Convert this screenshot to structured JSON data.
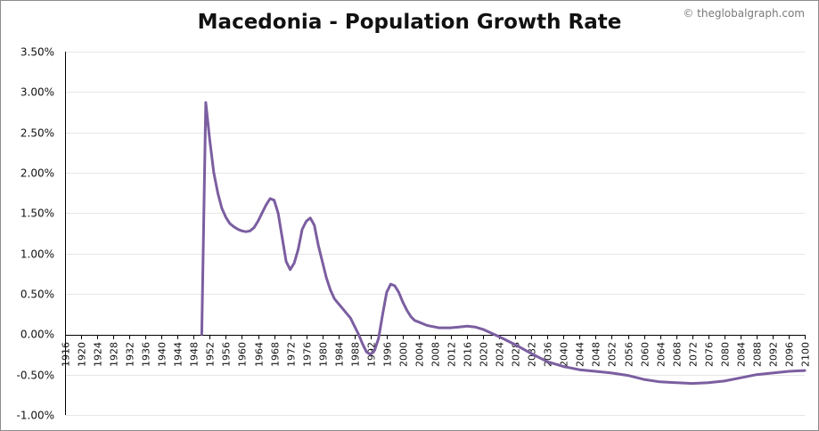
{
  "chart_data": {
    "type": "line",
    "title": "Macedonia - Population Growth Rate",
    "credit": "© theglobalgraph.com",
    "xlim": [
      1916,
      2100
    ],
    "ylim": [
      -1.0,
      3.5
    ],
    "ytick_values": [
      3.5,
      3.0,
      2.5,
      2.0,
      1.5,
      1.0,
      0.5,
      0.0,
      -0.5,
      -1.0
    ],
    "ytick_labels": [
      "3.50%",
      "3.00%",
      "2.50%",
      "2.00%",
      "1.50%",
      "1.00%",
      "0.50%",
      "0.00%",
      "-0.50%",
      "-1.00%"
    ],
    "xtick_values": [
      1916,
      1920,
      1924,
      1928,
      1932,
      1936,
      1940,
      1944,
      1948,
      1952,
      1956,
      1960,
      1964,
      1968,
      1972,
      1976,
      1980,
      1984,
      1988,
      1992,
      1996,
      2000,
      2004,
      2008,
      2012,
      2016,
      2020,
      2024,
      2028,
      2032,
      2036,
      2040,
      2044,
      2048,
      2052,
      2056,
      2060,
      2064,
      2068,
      2072,
      2076,
      2080,
      2084,
      2088,
      2092,
      2096,
      2100
    ],
    "xtick_labels": [
      "1916",
      "1920",
      "1924",
      "1928",
      "1932",
      "1936",
      "1940",
      "1944",
      "1948",
      "1952",
      "1956",
      "1960",
      "1964",
      "1968",
      "1972",
      "1976",
      "1980",
      "1984",
      "1988",
      "1992",
      "1996",
      "2000",
      "2004",
      "2008",
      "2012",
      "2016",
      "2020",
      "2024",
      "2028",
      "2032",
      "2036",
      "2040",
      "2044",
      "2048",
      "2052",
      "2056",
      "2060",
      "2064",
      "2068",
      "2072",
      "2076",
      "2080",
      "2084",
      "2088",
      "2092",
      "2096",
      "2100"
    ],
    "grid": true,
    "colors": {
      "line": "#7b5ea0",
      "grid": "#e6e6e6",
      "axis": "#000000"
    },
    "series": [
      {
        "x": [
          1950,
          1951,
          1952,
          1953,
          1954,
          1955,
          1956,
          1957,
          1958,
          1959,
          1960,
          1961,
          1962,
          1963,
          1964,
          1965,
          1966,
          1967,
          1968,
          1969,
          1970,
          1971,
          1972,
          1973,
          1974,
          1975,
          1976,
          1977,
          1978,
          1979,
          1980,
          1981,
          1982,
          1983,
          1984,
          1985,
          1986,
          1987,
          1988,
          1989,
          1990,
          1991,
          1992,
          1993,
          1994,
          1995,
          1996,
          1997,
          1998,
          1999,
          2000,
          2001,
          2002,
          2003,
          2004,
          2005,
          2006,
          2007,
          2008,
          2009,
          2010,
          2012,
          2014,
          2016,
          2018,
          2020,
          2024,
          2028,
          2032,
          2036,
          2040,
          2044,
          2048,
          2052,
          2056,
          2060,
          2064,
          2068,
          2072,
          2076,
          2080,
          2084,
          2088,
          2092,
          2096,
          2100
        ],
        "values": [
          0.0,
          2.87,
          2.4,
          2.0,
          1.75,
          1.56,
          1.45,
          1.37,
          1.33,
          1.3,
          1.28,
          1.27,
          1.28,
          1.32,
          1.4,
          1.5,
          1.6,
          1.68,
          1.66,
          1.5,
          1.2,
          0.9,
          0.8,
          0.88,
          1.05,
          1.3,
          1.4,
          1.44,
          1.35,
          1.1,
          0.9,
          0.7,
          0.55,
          0.44,
          0.38,
          0.32,
          0.26,
          0.2,
          0.1,
          0.0,
          -0.12,
          -0.22,
          -0.25,
          -0.2,
          -0.05,
          0.25,
          0.52,
          0.62,
          0.6,
          0.52,
          0.4,
          0.3,
          0.22,
          0.17,
          0.15,
          0.13,
          0.11,
          0.1,
          0.09,
          0.08,
          0.08,
          0.08,
          0.09,
          0.1,
          0.09,
          0.06,
          -0.03,
          -0.13,
          -0.24,
          -0.34,
          -0.4,
          -0.44,
          -0.46,
          -0.48,
          -0.51,
          -0.56,
          -0.59,
          -0.6,
          -0.61,
          -0.6,
          -0.58,
          -0.54,
          -0.5,
          -0.48,
          -0.46,
          -0.45
        ]
      }
    ]
  }
}
